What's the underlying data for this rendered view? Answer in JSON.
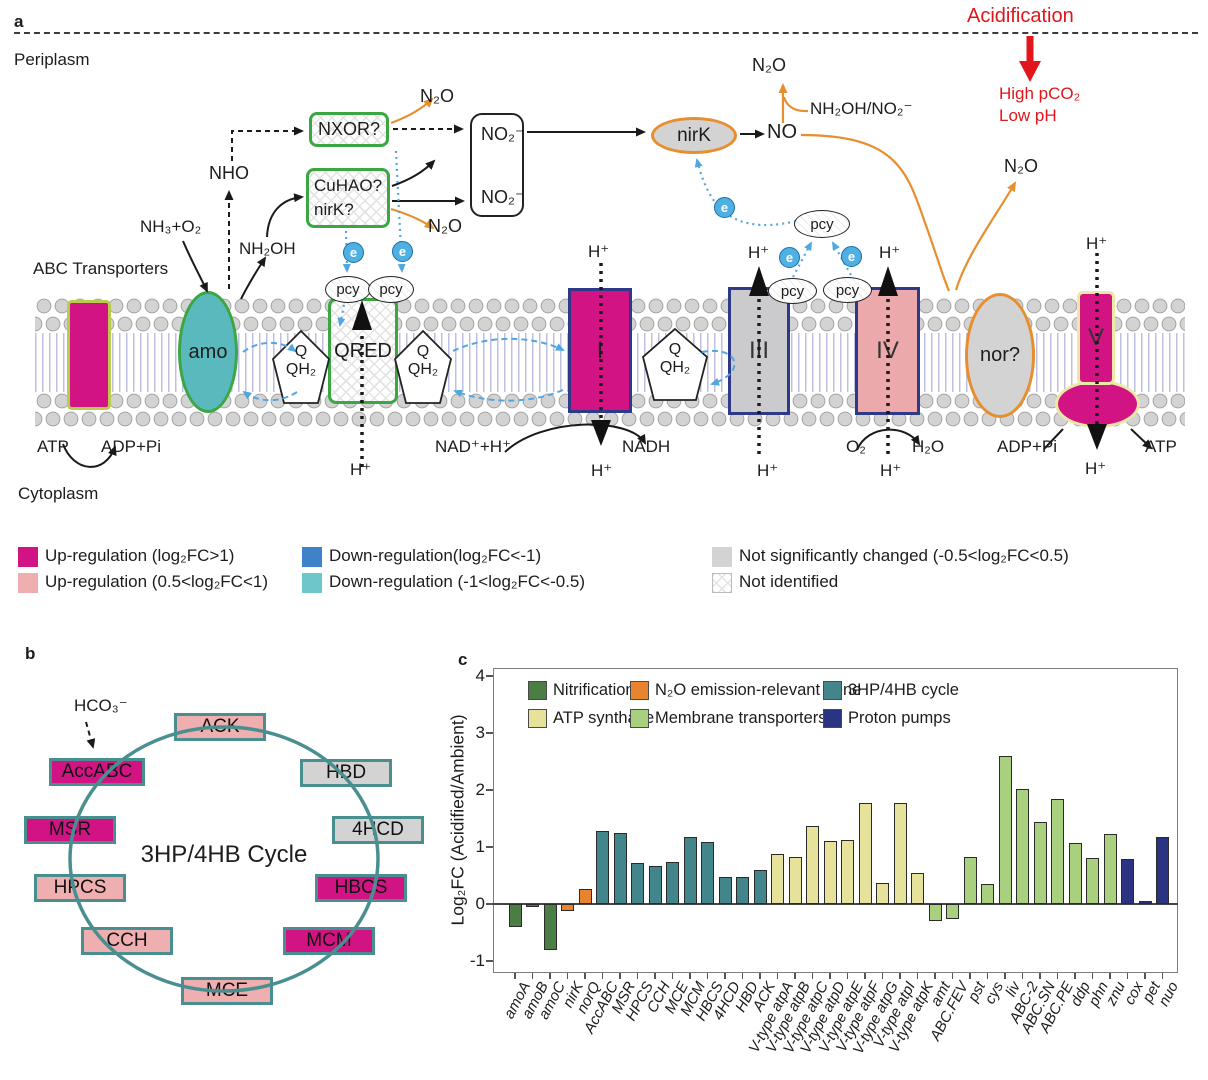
{
  "panel_a": {
    "tag": "a",
    "periplasm": "Periplasm",
    "cytoplasm": "Cytoplasm",
    "abc_transporters": "ABC Transporters",
    "acidification": "Acidification",
    "high_pco2": "High pCO₂",
    "low_ph": "Low pH",
    "nxor": "NXOR?",
    "cuhao_line1": "CuHAO?",
    "cuhao_line2": "nirK?",
    "no2": "NO₂⁻",
    "nirk": "nirK",
    "no": "NO",
    "n2o": "N₂O",
    "nh2oh_no2": "NH₂OH/NO₂⁻",
    "nho": "NHO",
    "nh3_o2": "NH₃+O₂",
    "nh2oh": "NH₂OH",
    "amo": "amo",
    "qred": "QRED",
    "q": "Q",
    "qh2": "QH₂",
    "pcy": "pcy",
    "e": "e",
    "complex1": "I",
    "complex3": "III",
    "complex4": "IV",
    "nor": "nor?",
    "complex5": "V",
    "h_plus": "H⁺",
    "atp": "ATP",
    "adp_pi": "ADP+Pi",
    "nad_h": "NAD⁺+H⁺",
    "nadh": "NADH",
    "o2": "O₂",
    "h2o": "H₂O",
    "colors": {
      "up_strong": "#d21384",
      "up_weak": "#efaeb0",
      "down_strong": "#3e82c9",
      "down_weak": "#6fc6ca",
      "not_significant": "#d3d3d3",
      "green_border": "#3ca643",
      "navy_border": "#2e3a87",
      "orange": "#e78f2e",
      "amo_fill": "#5ab9bd",
      "red": "#e0161c"
    },
    "legend": [
      {
        "label": "Up-regulation (log₂FC>1)",
        "swatch": "#d21384"
      },
      {
        "label": "Up-regulation (0.5<log₂FC<1)",
        "swatch": "#efaeb0"
      },
      {
        "label": "Down-regulation(log₂FC<-1)",
        "swatch": "#3e82c9"
      },
      {
        "label": "Down-regulation (-1<log₂FC<-0.5)",
        "swatch": "#6fc6ca"
      },
      {
        "label": "Not significantly changed (-0.5<log₂FC<0.5)",
        "swatch": "#d3d3d3"
      },
      {
        "label": "Not identified",
        "swatch": "hatch"
      }
    ]
  },
  "panel_b": {
    "tag": "b",
    "hco3": "HCO₃⁻",
    "title": "3HP/4HB Cycle",
    "nodes": [
      {
        "label": "ACK",
        "state": "up-weak"
      },
      {
        "label": "HBD",
        "state": "ns"
      },
      {
        "label": "4HCD",
        "state": "ns"
      },
      {
        "label": "HBCS",
        "state": "up-strong"
      },
      {
        "label": "MCM",
        "state": "up-strong"
      },
      {
        "label": "MCE",
        "state": "up-weak"
      },
      {
        "label": "CCH",
        "state": "up-weak"
      },
      {
        "label": "HPCS",
        "state": "up-weak"
      },
      {
        "label": "MSR",
        "state": "up-strong"
      },
      {
        "label": "AccABC",
        "state": "up-strong"
      }
    ]
  },
  "panel_c_tag": "c",
  "chart_data": {
    "type": "bar",
    "title": "",
    "xlabel": "",
    "ylabel": "Log₂FC (Acidified/Ambient)",
    "ylim": [
      -1.2,
      4.15
    ],
    "yticks": [
      4,
      3,
      2,
      1,
      0,
      -1
    ],
    "grid": false,
    "legend_position": "upper-inside",
    "legend": [
      {
        "label": "Nitrification",
        "color": "#4a7e45"
      },
      {
        "label": "N₂O emission-relevant gene",
        "color": "#e8832f"
      },
      {
        "label": "3HP/4HB cycle",
        "color": "#42858a"
      },
      {
        "label": "ATP synthase",
        "color": "#e7e29b"
      },
      {
        "label": "Membrane transporters",
        "color": "#a9d07f"
      },
      {
        "label": "Proton pumps",
        "color": "#2b3383"
      }
    ],
    "bars": [
      {
        "label": "amoA",
        "group": 0,
        "value": -0.4
      },
      {
        "label": "amoB",
        "group": 0,
        "value": -0.05
      },
      {
        "label": "amoC",
        "group": 0,
        "value": -0.8
      },
      {
        "label": "nirK",
        "group": 1,
        "value": -0.13
      },
      {
        "label": "norQ",
        "group": 1,
        "value": 0.27
      },
      {
        "label": "AccABC",
        "group": 2,
        "value": 1.28
      },
      {
        "label": "MSR",
        "group": 2,
        "value": 1.25
      },
      {
        "label": "HPCS",
        "group": 2,
        "value": 0.72
      },
      {
        "label": "CCH",
        "group": 2,
        "value": 0.67
      },
      {
        "label": "MCE",
        "group": 2,
        "value": 0.74
      },
      {
        "label": "MCM",
        "group": 2,
        "value": 1.18
      },
      {
        "label": "HBCS",
        "group": 2,
        "value": 1.08
      },
      {
        "label": "4HCD",
        "group": 2,
        "value": 0.47
      },
      {
        "label": "HBD",
        "group": 2,
        "value": 0.48
      },
      {
        "label": "ACK",
        "group": 2,
        "value": 0.6
      },
      {
        "label": "V-type atpA",
        "group": 3,
        "value": 0.87
      },
      {
        "label": "V-type atpB",
        "group": 3,
        "value": 0.83
      },
      {
        "label": "V-type atpC",
        "group": 3,
        "value": 1.36
      },
      {
        "label": "V-type atpD",
        "group": 3,
        "value": 1.1
      },
      {
        "label": "V-type atpE",
        "group": 3,
        "value": 1.12
      },
      {
        "label": "V-type atpF",
        "group": 3,
        "value": 1.78
      },
      {
        "label": "V-type atpG",
        "group": 3,
        "value": 0.37
      },
      {
        "label": "V-type atpI",
        "group": 3,
        "value": 1.77
      },
      {
        "label": "V-type atpK",
        "group": 3,
        "value": 0.55
      },
      {
        "label": "amt",
        "group": 4,
        "value": -0.3
      },
      {
        "label": "ABC.FEV",
        "group": 4,
        "value": -0.27
      },
      {
        "label": "pst",
        "group": 4,
        "value": 0.82
      },
      {
        "label": "cys",
        "group": 4,
        "value": 0.35
      },
      {
        "label": "liv",
        "group": 4,
        "value": 2.6
      },
      {
        "label": "ABC-2",
        "group": 4,
        "value": 2.02
      },
      {
        "label": "ABC.SN",
        "group": 4,
        "value": 1.44
      },
      {
        "label": "ABC.PE",
        "group": 4,
        "value": 1.84
      },
      {
        "label": "ddp",
        "group": 4,
        "value": 1.07
      },
      {
        "label": "phn",
        "group": 4,
        "value": 0.81
      },
      {
        "label": "znu",
        "group": 4,
        "value": 1.23
      },
      {
        "label": "cox",
        "group": 5,
        "value": 0.79
      },
      {
        "label": "pet",
        "group": 5,
        "value": 0.05
      },
      {
        "label": "nuo",
        "group": 5,
        "value": 1.17
      }
    ]
  }
}
